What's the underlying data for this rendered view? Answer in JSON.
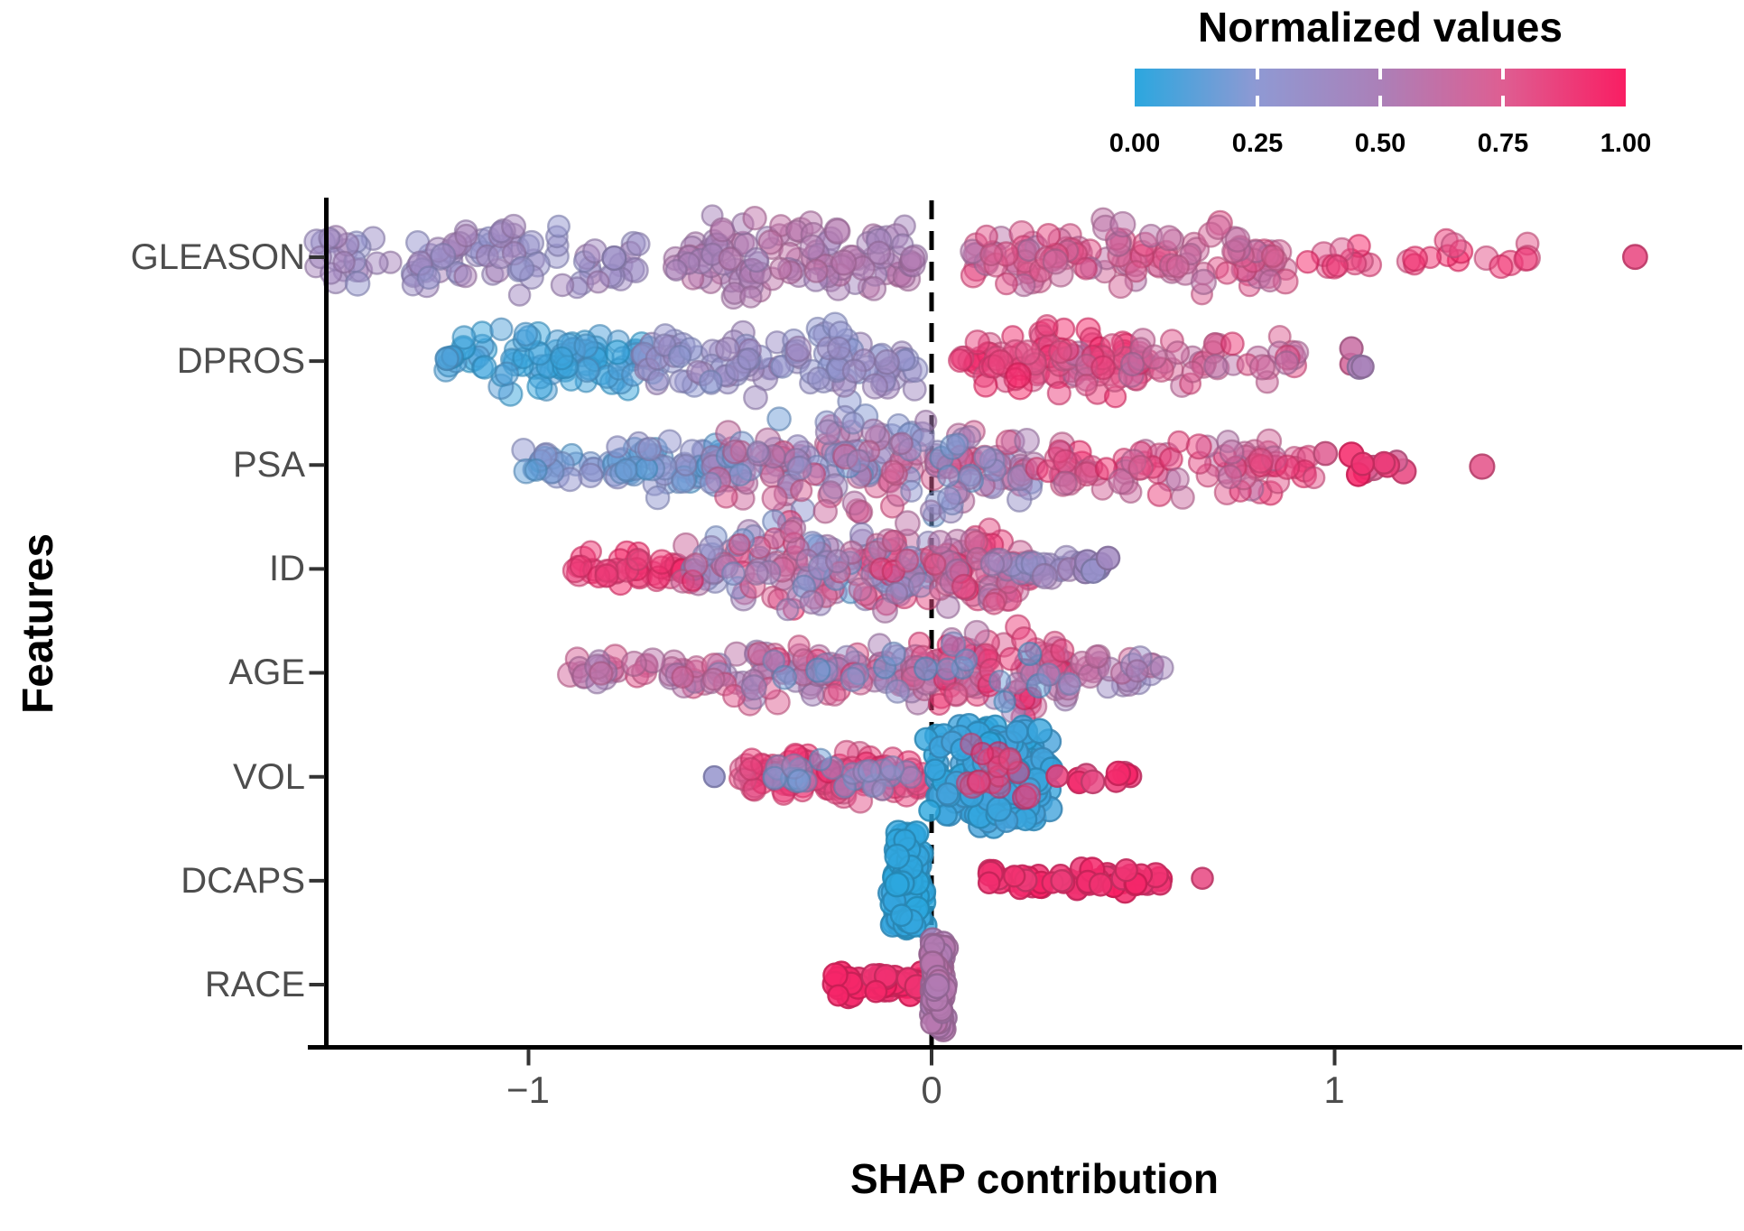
{
  "chart_data": {
    "type": "scatter",
    "variant": "shap-beeswarm-summary",
    "title": "",
    "xlabel": "SHAP contribution",
    "ylabel": "Features",
    "x_range": [
      -1.55,
      2.0
    ],
    "grid": false,
    "zero_line": {
      "x": 0,
      "style": "dashed",
      "color": "#000000"
    },
    "x_ticks": [
      {
        "value": -1,
        "label": "−1"
      },
      {
        "value": 0,
        "label": "0"
      },
      {
        "value": 1,
        "label": "1"
      }
    ],
    "legend": {
      "title": "Normalized values",
      "position": "top-right",
      "ticks": [
        {
          "t": 0.0,
          "label": "0.00"
        },
        {
          "t": 0.25,
          "label": "0.25"
        },
        {
          "t": 0.5,
          "label": "0.50"
        },
        {
          "t": 0.75,
          "label": "0.75"
        },
        {
          "t": 1.0,
          "label": "1.00"
        }
      ],
      "gradient_stops": [
        {
          "t": 0.0,
          "color": "#2BA7DF"
        },
        {
          "t": 0.25,
          "color": "#8F99D3"
        },
        {
          "t": 0.5,
          "color": "#AB80B8"
        },
        {
          "t": 0.75,
          "color": "#DE5E92"
        },
        {
          "t": 1.0,
          "color": "#F91E63"
        }
      ]
    },
    "point_style": {
      "radius": 12.5,
      "swarm_fill_opacity": 0.5,
      "swarm_stroke_opacity": 0.6,
      "blob_fill_opacity": 0.8,
      "line_fill_opacity": 0.85,
      "stroke_width": 2.4
    },
    "seed": 11,
    "features": [
      {
        "label": "GLEASON",
        "clusters": [
          {
            "profile": "swarm",
            "x": [
              -1.53,
              -0.72
            ],
            "n": 100,
            "norm": [
              0.28,
              0.5
            ],
            "spread": 0.75
          },
          {
            "profile": "line",
            "x": [
              -0.79,
              -0.77
            ],
            "n": 1,
            "norm": [
              0.35,
              0.36
            ],
            "spread": 0.1
          },
          {
            "profile": "swarm",
            "x": [
              -0.64,
              -0.04
            ],
            "n": 120,
            "norm": [
              0.42,
              0.62
            ],
            "spread": 0.82
          },
          {
            "profile": "swarm",
            "x": [
              0.1,
              0.88
            ],
            "n": 130,
            "norm": [
              0.55,
              0.85
            ],
            "spread": 0.76
          },
          {
            "profile": "swarm",
            "x": [
              0.88,
              1.53
            ],
            "n": 26,
            "norm": [
              0.75,
              1.0
            ],
            "spread": 0.4
          },
          {
            "profile": "line",
            "x": [
              1.74,
              1.76
            ],
            "n": 1,
            "norm": [
              0.85,
              0.86
            ],
            "spread": 0.1
          }
        ]
      },
      {
        "label": "DPROS",
        "clusters": [
          {
            "profile": "swarm",
            "x": [
              -1.22,
              -0.68
            ],
            "n": 100,
            "norm": [
              0.0,
              0.12
            ],
            "spread": 0.72
          },
          {
            "profile": "swarm",
            "x": [
              -0.72,
              -0.04
            ],
            "n": 115,
            "norm": [
              0.22,
              0.45
            ],
            "spread": 0.82
          },
          {
            "profile": "swarm",
            "x": [
              0.07,
              0.55
            ],
            "n": 90,
            "norm": [
              0.75,
              1.0
            ],
            "spread": 0.7
          },
          {
            "profile": "swarm",
            "x": [
              0.3,
              0.92
            ],
            "n": 60,
            "norm": [
              0.55,
              0.9
            ],
            "spread": 0.6
          },
          {
            "profile": "line",
            "x": [
              0.95,
              1.08
            ],
            "n": 4,
            "norm": [
              0.35,
              0.75
            ],
            "spread": 0.25
          }
        ]
      },
      {
        "label": "PSA",
        "clusters": [
          {
            "profile": "swarm",
            "x": [
              -1.04,
              -0.75
            ],
            "n": 30,
            "norm": [
              0.08,
              0.3
            ],
            "spread": 0.45
          },
          {
            "profile": "swarm",
            "x": [
              -0.78,
              -0.5
            ],
            "n": 60,
            "norm": [
              0.08,
              0.35
            ],
            "spread": 0.65
          },
          {
            "profile": "swarm",
            "x": [
              -0.55,
              0.25
            ],
            "n": 200,
            "norm": [
              0.15,
              0.8
            ],
            "spread": 1.0
          },
          {
            "profile": "swarm",
            "x": [
              0.25,
              0.95
            ],
            "n": 90,
            "norm": [
              0.55,
              0.95
            ],
            "spread": 0.65
          },
          {
            "profile": "line",
            "x": [
              0.95,
              1.2
            ],
            "n": 12,
            "norm": [
              0.7,
              1.0
            ],
            "spread": 0.25
          },
          {
            "profile": "line",
            "x": [
              1.35,
              1.37
            ],
            "n": 1,
            "norm": [
              0.8,
              0.81
            ],
            "spread": 0.1
          }
        ]
      },
      {
        "label": "ID",
        "clusters": [
          {
            "profile": "swarm",
            "x": [
              -0.9,
              -0.6
            ],
            "n": 40,
            "norm": [
              0.82,
              1.0
            ],
            "spread": 0.4
          },
          {
            "profile": "swarm",
            "x": [
              -0.62,
              0.0
            ],
            "n": 160,
            "norm": [
              0.1,
              0.95
            ],
            "spread": 0.95
          },
          {
            "profile": "swarm",
            "x": [
              0.0,
              0.25
            ],
            "n": 80,
            "norm": [
              0.45,
              0.95
            ],
            "spread": 0.8
          },
          {
            "profile": "swarm",
            "x": [
              0.15,
              0.38
            ],
            "n": 30,
            "norm": [
              0.3,
              0.5
            ],
            "spread": 0.35
          },
          {
            "profile": "line",
            "x": [
              0.38,
              0.45
            ],
            "n": 6,
            "norm": [
              0.3,
              0.42
            ],
            "spread": 0.2
          }
        ]
      },
      {
        "label": "AGE",
        "clusters": [
          {
            "profile": "swarm",
            "x": [
              -0.91,
              -0.55
            ],
            "n": 40,
            "norm": [
              0.45,
              0.8
            ],
            "spread": 0.35
          },
          {
            "profile": "swarm",
            "x": [
              -0.55,
              -0.05
            ],
            "n": 90,
            "norm": [
              0.35,
              0.9
            ],
            "spread": 0.7
          },
          {
            "profile": "swarm",
            "x": [
              -0.05,
              0.35
            ],
            "n": 120,
            "norm": [
              0.4,
              1.0
            ],
            "spread": 0.95
          },
          {
            "profile": "swarm",
            "x": [
              0.35,
              0.58
            ],
            "n": 25,
            "norm": [
              0.3,
              0.7
            ],
            "spread": 0.4
          },
          {
            "profile": "swarm",
            "x": [
              -0.45,
              0.45
            ],
            "n": 20,
            "norm": [
              0.1,
              0.3
            ],
            "spread": 0.6
          }
        ]
      },
      {
        "label": "VOL",
        "clusters": [
          {
            "profile": "line",
            "x": [
              -0.54,
              -0.52
            ],
            "n": 1,
            "norm": [
              0.3,
              0.31
            ],
            "spread": 0.1
          },
          {
            "profile": "swarm",
            "x": [
              -0.48,
              -0.02
            ],
            "n": 110,
            "norm": [
              0.7,
              1.0
            ],
            "spread": 0.55
          },
          {
            "profile": "swarm",
            "x": [
              -0.4,
              -0.05
            ],
            "n": 25,
            "norm": [
              0.15,
              0.4
            ],
            "spread": 0.45
          },
          {
            "profile": "blob",
            "x": [
              0.0,
              0.3
            ],
            "n": 220,
            "norm": [
              0.0,
              0.08
            ],
            "spread": 1.0
          },
          {
            "profile": "swarm",
            "x": [
              0.05,
              0.28
            ],
            "n": 18,
            "norm": [
              0.75,
              0.95
            ],
            "spread": 0.7
          },
          {
            "profile": "line",
            "x": [
              0.3,
              0.5
            ],
            "n": 10,
            "norm": [
              0.8,
              1.0
            ],
            "spread": 0.3
          }
        ]
      },
      {
        "label": "DCAPS",
        "clusters": [
          {
            "profile": "blob",
            "x": [
              -0.1,
              -0.02
            ],
            "n": 130,
            "norm": [
              0.0,
              0.03
            ],
            "spread": 0.95
          },
          {
            "profile": "line",
            "x": [
              0.12,
              0.57
            ],
            "n": 55,
            "norm": [
              0.88,
              1.0
            ],
            "spread": 0.2
          },
          {
            "profile": "line",
            "x": [
              0.67,
              0.68
            ],
            "n": 1,
            "norm": [
              0.84,
              0.85
            ],
            "spread": 0.1
          }
        ]
      },
      {
        "label": "RACE",
        "clusters": [
          {
            "profile": "line",
            "x": [
              -0.24,
              -0.02
            ],
            "n": 48,
            "norm": [
              0.9,
              1.0
            ],
            "spread": 0.2
          },
          {
            "profile": "blob",
            "x": [
              -0.005,
              0.035
            ],
            "n": 120,
            "norm": [
              0.52,
              0.58
            ],
            "spread": 0.88
          }
        ]
      }
    ]
  }
}
